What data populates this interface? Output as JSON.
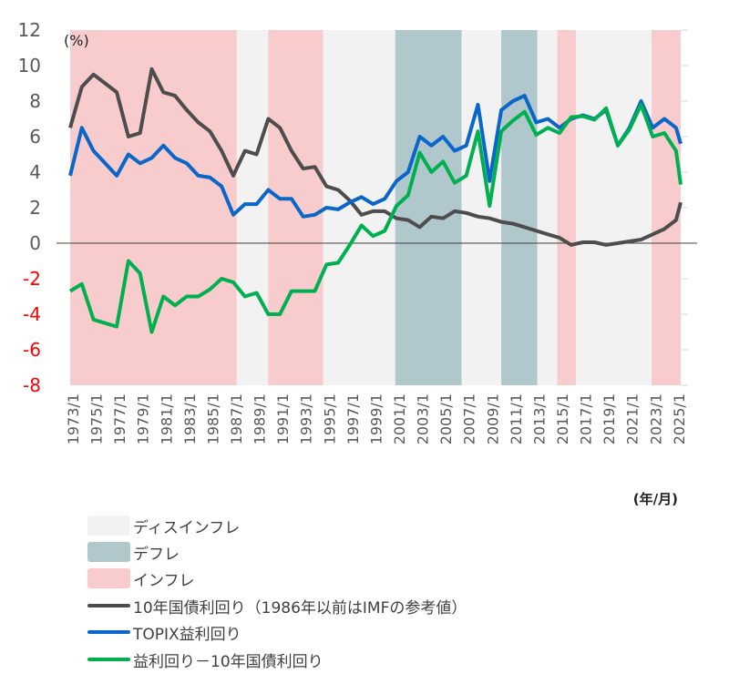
{
  "chart_data": {
    "type": "line",
    "unit_label": "(%)",
    "x_unit_label": "(年/月)",
    "ylim": [
      -8,
      12
    ],
    "yticks": [
      12,
      10,
      8,
      6,
      4,
      2,
      0,
      -2,
      -4,
      -6,
      -8
    ],
    "xticks": [
      "1973/1",
      "1975/1",
      "1977/1",
      "1979/1",
      "1981/1",
      "1983/1",
      "1985/1",
      "1987/1",
      "1989/1",
      "1991/1",
      "1993/1",
      "1995/1",
      "1997/1",
      "1999/1",
      "2001/1",
      "2003/1",
      "2005/1",
      "2007/1",
      "2009/1",
      "2011/1",
      "2013/1",
      "2015/1",
      "2017/1",
      "2019/1",
      "2021/1",
      "2023/1",
      "2025/1"
    ],
    "xlim": [
      1973.0,
      2025.4
    ],
    "negative_tick_color": "#ff0000",
    "positive_tick_color": "#595959",
    "regimes": [
      {
        "type": "inflation",
        "start": 1973.0,
        "end": 1987.3
      },
      {
        "type": "disinflation",
        "start": 1987.3,
        "end": 1990.0
      },
      {
        "type": "inflation",
        "start": 1990.0,
        "end": 1994.7
      },
      {
        "type": "disinflation",
        "start": 1994.7,
        "end": 2000.9
      },
      {
        "type": "deflation",
        "start": 2000.9,
        "end": 2006.6
      },
      {
        "type": "disinflation",
        "start": 2006.6,
        "end": 2010.0
      },
      {
        "type": "deflation",
        "start": 2010.0,
        "end": 2013.1
      },
      {
        "type": "disinflation",
        "start": 2013.1,
        "end": 2014.8
      },
      {
        "type": "inflation",
        "start": 2014.8,
        "end": 2016.4
      },
      {
        "type": "disinflation",
        "start": 2016.4,
        "end": 2022.9
      },
      {
        "type": "inflation",
        "start": 2022.9,
        "end": 2025.4
      }
    ],
    "regime_colors": {
      "disinflation": "#f2f2f2",
      "deflation": "#b0c8cc",
      "inflation": "#f8cccc"
    },
    "x": [
      1973,
      1974,
      1975,
      1976,
      1977,
      1978,
      1979,
      1980,
      1981,
      1982,
      1983,
      1984,
      1985,
      1986,
      1987,
      1988,
      1989,
      1990,
      1991,
      1992,
      1993,
      1994,
      1995,
      1996,
      1997,
      1998,
      1999,
      2000,
      2001,
      2002,
      2003,
      2004,
      2005,
      2006,
      2007,
      2008,
      2009,
      2010,
      2011,
      2012,
      2013,
      2014,
      2015,
      2016,
      2017,
      2018,
      2019,
      2020,
      2021,
      2022,
      2023,
      2024,
      2025,
      2025.4
    ],
    "series": [
      {
        "name": "10年国債利回り（1986年以前はIMFの参考値）",
        "color": "#4d4d4d",
        "values": [
          6.5,
          8.8,
          9.5,
          9.0,
          8.5,
          6.0,
          6.2,
          9.8,
          8.5,
          8.3,
          7.5,
          6.8,
          6.3,
          5.2,
          3.8,
          5.2,
          5.0,
          7.0,
          6.5,
          5.2,
          4.2,
          4.3,
          3.2,
          3.0,
          2.4,
          1.6,
          1.8,
          1.8,
          1.4,
          1.3,
          0.9,
          1.5,
          1.4,
          1.8,
          1.7,
          1.5,
          1.4,
          1.2,
          1.1,
          0.9,
          0.7,
          0.5,
          0.3,
          -0.1,
          0.05,
          0.05,
          -0.1,
          0.0,
          0.1,
          0.2,
          0.5,
          0.8,
          1.3,
          2.3
        ]
      },
      {
        "name": "TOPIX益利回り",
        "color": "#0a66c8",
        "values": [
          3.8,
          6.5,
          5.2,
          4.5,
          3.8,
          5.0,
          4.5,
          4.8,
          5.5,
          4.8,
          4.5,
          3.8,
          3.7,
          3.2,
          1.6,
          2.2,
          2.2,
          3.0,
          2.5,
          2.5,
          1.5,
          1.6,
          2.0,
          1.9,
          2.3,
          2.6,
          2.2,
          2.5,
          3.5,
          4.0,
          6.0,
          5.5,
          6.0,
          5.2,
          5.5,
          7.8,
          3.5,
          7.5,
          8.0,
          8.3,
          6.8,
          7.0,
          6.5,
          7.0,
          7.2,
          7.0,
          7.5,
          5.5,
          6.5,
          8.0,
          6.5,
          7.0,
          6.5,
          5.6
        ]
      },
      {
        "name": "益利回り－10年国債利回り",
        "color": "#00b050",
        "values": [
          -2.7,
          -2.3,
          -4.3,
          -4.5,
          -4.7,
          -1.0,
          -1.7,
          -5.0,
          -3.0,
          -3.5,
          -3.0,
          -3.0,
          -2.6,
          -2.0,
          -2.2,
          -3.0,
          -2.8,
          -4.0,
          -4.0,
          -2.7,
          -2.7,
          -2.7,
          -1.2,
          -1.1,
          -0.1,
          1.0,
          0.4,
          0.7,
          2.1,
          2.7,
          5.1,
          4.0,
          4.6,
          3.4,
          3.8,
          6.3,
          2.1,
          6.3,
          6.9,
          7.4,
          6.1,
          6.5,
          6.2,
          7.1,
          7.15,
          6.95,
          7.6,
          5.5,
          6.4,
          7.8,
          6.0,
          6.2,
          5.2,
          3.3
        ]
      }
    ],
    "legend": [
      {
        "label": "ディスインフレ",
        "kind": "area",
        "color": "#f2f2f2"
      },
      {
        "label": "デフレ",
        "kind": "area",
        "color": "#b0c8cc"
      },
      {
        "label": "インフレ",
        "kind": "area",
        "color": "#f8cccc"
      },
      {
        "label": "10年国債利回り（1986年以前はIMFの参考値）",
        "kind": "line",
        "color": "#4d4d4d"
      },
      {
        "label": "TOPIX益利回り",
        "kind": "line",
        "color": "#0a66c8"
      },
      {
        "label": "益利回り－10年国債利回り",
        "kind": "line",
        "color": "#00b050"
      }
    ],
    "legend_position": "bottom-left"
  }
}
